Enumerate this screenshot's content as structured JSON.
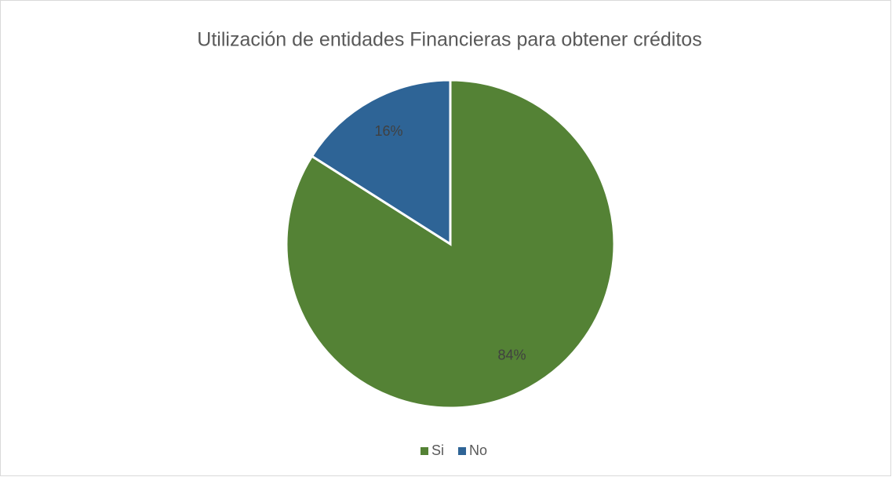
{
  "chart_data": {
    "type": "pie",
    "title": "Utilización de entidades Financieras para obtener créditos",
    "categories": [
      "Si",
      "No"
    ],
    "values": [
      84,
      16
    ],
    "value_labels": [
      "84%",
      "16%"
    ],
    "colors": [
      "#548235",
      "#2e6496"
    ],
    "legend": "bottom"
  }
}
